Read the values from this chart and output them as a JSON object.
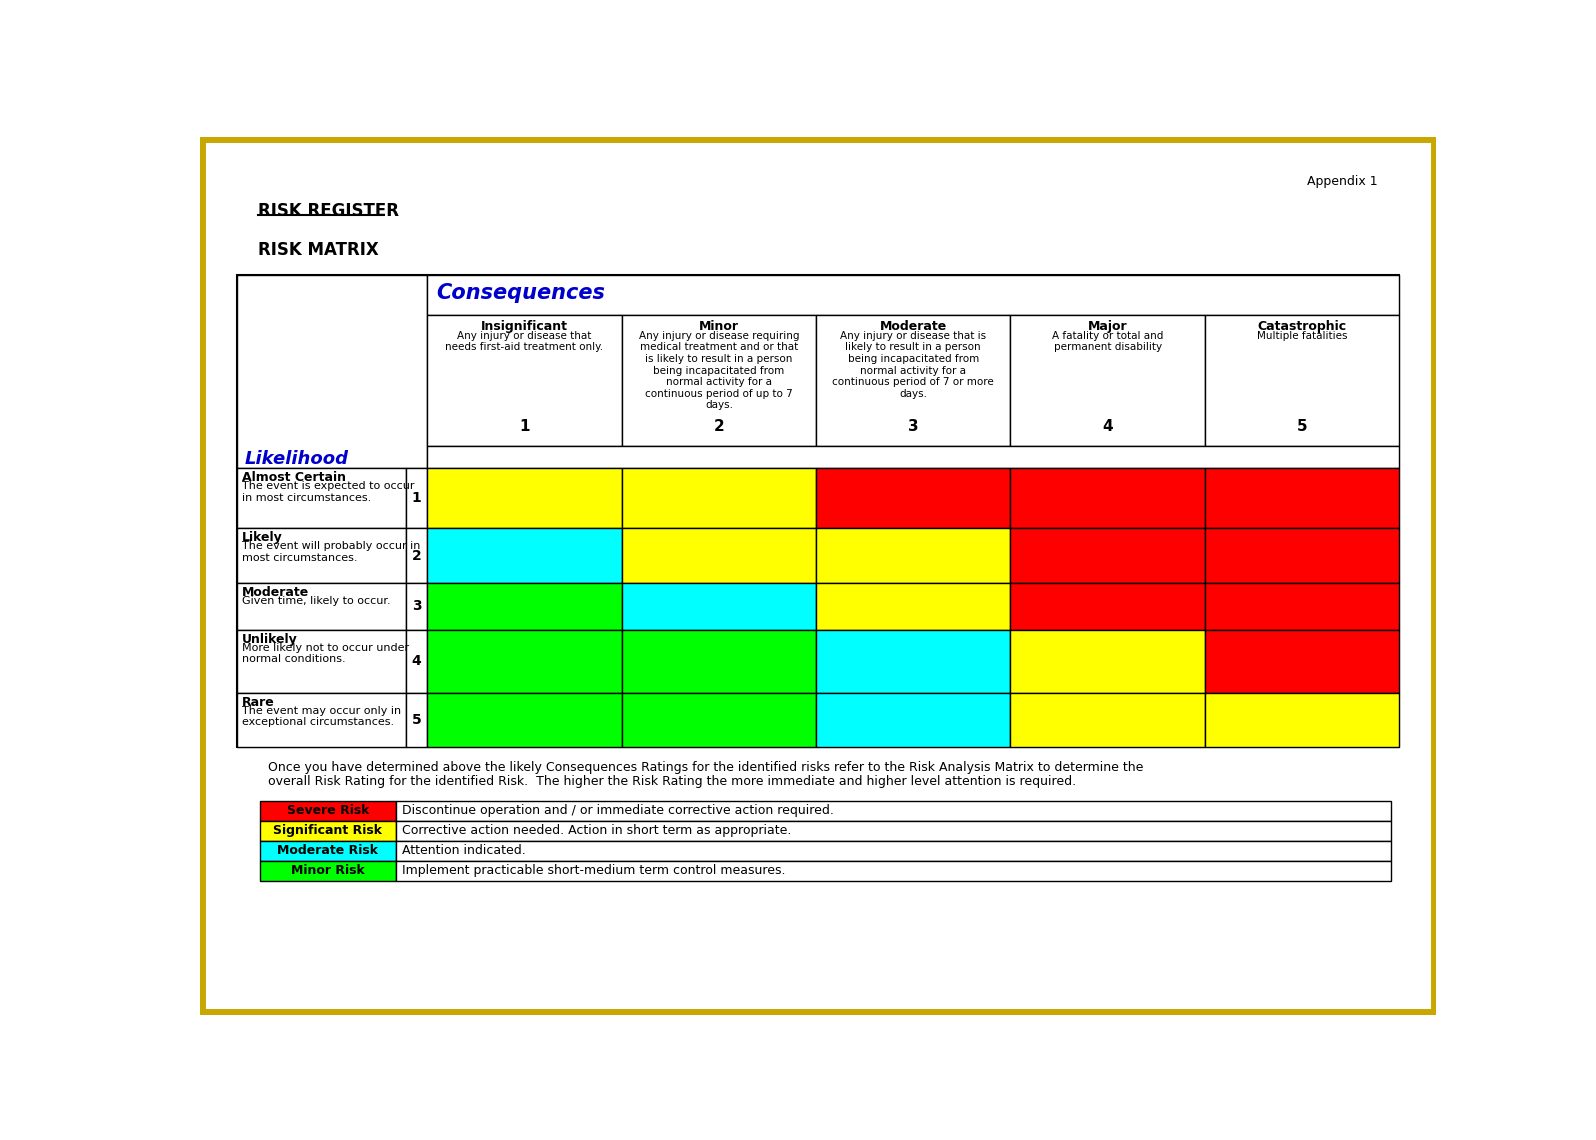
{
  "title1": "RISK REGISTER",
  "title2": "RISK MATRIX",
  "appendix": "Appendix 1",
  "consequences_label": "Consequences",
  "likelihood_label": "Likelihood",
  "col_headers": [
    "Insignificant",
    "Minor",
    "Moderate",
    "Major",
    "Catastrophic"
  ],
  "col_descs": [
    "Any injury or disease that\nneeds first-aid treatment only.",
    "Any injury or disease requiring\nmedical treatment and or that\nis likely to result in a person\nbeing incapacitated from\nnormal activity for a\ncontinuous period of up to 7\ndays.",
    "Any injury or disease that is\nlikely to result in a person\nbeing incapacitated from\nnormal activity for a\ncontinuous period of 7 or more\ndays.",
    "A fatality or total and\npermanent disability",
    "Multiple fatalities"
  ],
  "col_nums": [
    "1",
    "2",
    "3",
    "4",
    "5"
  ],
  "row_headers": [
    "Almost Certain",
    "Likely",
    "Moderate",
    "Unlikely",
    "Rare"
  ],
  "row_descs": [
    "The event is expected to occur\nin most circumstances.",
    "The event will probably occur in\nmost circumstances.",
    "Given time, likely to occur.",
    "More likely not to occur under\nnormal conditions.",
    "The event may occur only in\nexceptional circumstances."
  ],
  "row_nums": [
    "1",
    "2",
    "3",
    "4",
    "5"
  ],
  "heat_colors": [
    [
      "#FFFF00",
      "#FFFF00",
      "#FF0000",
      "#FF0000",
      "#FF0000"
    ],
    [
      "#00FFFF",
      "#FFFF00",
      "#FFFF00",
      "#FF0000",
      "#FF0000"
    ],
    [
      "#00FF00",
      "#00FFFF",
      "#FFFF00",
      "#FF0000",
      "#FF0000"
    ],
    [
      "#00FF00",
      "#00FF00",
      "#00FFFF",
      "#FFFF00",
      "#FF0000"
    ],
    [
      "#00FF00",
      "#00FF00",
      "#00FFFF",
      "#FFFF00",
      "#FFFF00"
    ]
  ],
  "legend_items": [
    {
      "label": "Severe Risk",
      "color": "#FF0000",
      "desc": "Discontinue operation and / or immediate corrective action required."
    },
    {
      "label": "Significant Risk",
      "color": "#FFFF00",
      "desc": "Corrective action needed. Action in short term as appropriate."
    },
    {
      "label": "Moderate Risk",
      "color": "#00FFFF",
      "desc": "Attention indicated."
    },
    {
      "label": "Minor Risk",
      "color": "#00FF00",
      "desc": "Implement practicable short-medium term control measures."
    }
  ],
  "paragraph": "Once you have determined above the likely Consequences Ratings for the identified risks refer to the Risk Analysis Matrix to determine the\noverall Risk Rating for the identified Risk.  The higher the Risk Rating the more immediate and higher level attention is required.",
  "bg_color": "#FFFFFF",
  "border_color": "#C8A800",
  "consequences_color": "#0000CC",
  "likelihood_color": "#0000CC"
}
